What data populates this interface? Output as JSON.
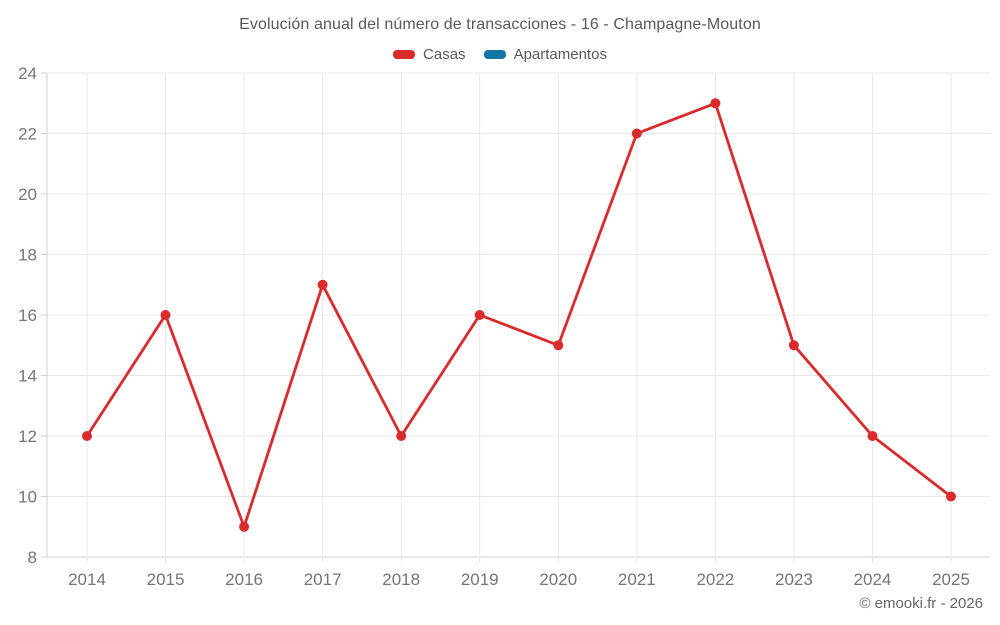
{
  "header": {
    "title": "Evolución anual del número de transacciones - 16 - Champagne-Mouton"
  },
  "footer": {
    "credit": "© emooki.fr - 2026"
  },
  "colors": {
    "casas": "#d92b2b",
    "apartamentos": "#1374a6",
    "grid": "#e8e8e8",
    "axis": "#d0d0d0",
    "tick_text": "#757575",
    "title_text": "#595959",
    "footer_text": "#666666",
    "background": "#ffffff"
  },
  "chart_data": {
    "type": "line",
    "title": "Evolución anual del número de transacciones - 16 - Champagne-Mouton",
    "categories": [
      "2014",
      "2015",
      "2016",
      "2017",
      "2018",
      "2019",
      "2020",
      "2021",
      "2022",
      "2023",
      "2024",
      "2025"
    ],
    "series": [
      {
        "name": "Casas",
        "color": "#d92b2b",
        "values": [
          12,
          16,
          9,
          17,
          12,
          16,
          15,
          22,
          23,
          15,
          12,
          10
        ]
      },
      {
        "name": "Apartamentos",
        "color": "#1374a6",
        "values": []
      }
    ],
    "xlabel": "",
    "ylabel": "",
    "ylim": [
      8,
      24
    ],
    "ytick_step": 2,
    "yticks": [
      8,
      10,
      12,
      14,
      16,
      18,
      20,
      22,
      24
    ],
    "grid": true,
    "legend_position": "top",
    "marker": "circle"
  }
}
